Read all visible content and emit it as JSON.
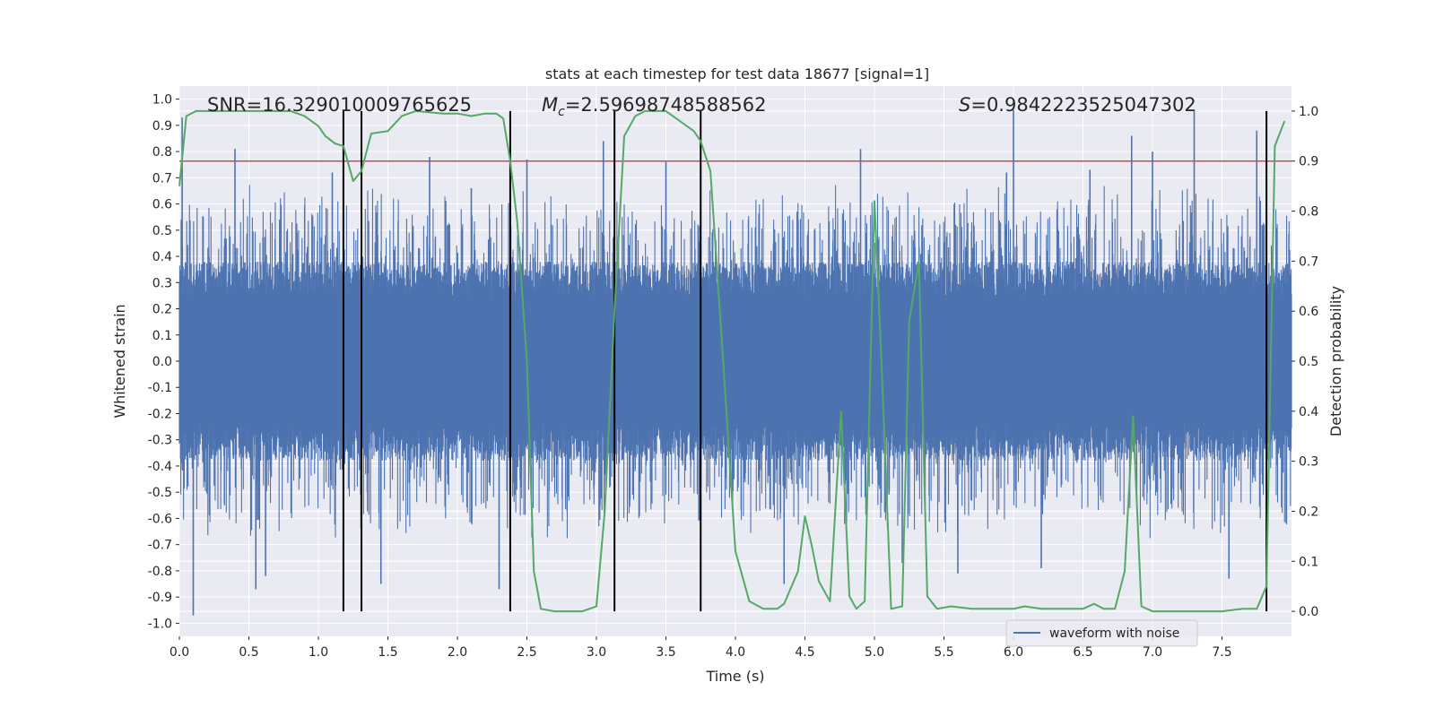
{
  "chart_data": {
    "type": "line",
    "title": "stats at each timestep for test data 18677 [signal=1]",
    "xlabel": "Time (s)",
    "ylabel_left": "Whitened strain",
    "ylabel_right": "Detection probability",
    "xlim": [
      0,
      8
    ],
    "ylim_left": [
      -1.05,
      1.05
    ],
    "ylim_right": [
      -0.05,
      1.05
    ],
    "x_ticks": [
      "0.0",
      "0.5",
      "1.0",
      "1.5",
      "2.0",
      "2.5",
      "3.0",
      "3.5",
      "4.0",
      "4.5",
      "5.0",
      "5.5",
      "6.0",
      "6.5",
      "7.0",
      "7.5"
    ],
    "y_left_ticks": [
      "1.0",
      "0.9",
      "0.8",
      "0.7",
      "0.6",
      "0.5",
      "0.4",
      "0.3",
      "0.2",
      "0.1",
      "0.0",
      "-0.1",
      "-0.2",
      "-0.3",
      "-0.4",
      "-0.5",
      "-0.6",
      "-0.7",
      "-0.8",
      "-0.9",
      "-1.0"
    ],
    "y_right_ticks": [
      "1.0",
      "0.9",
      "0.8",
      "0.7",
      "0.6",
      "0.5",
      "0.4",
      "0.3",
      "0.2",
      "0.1",
      "0.0"
    ],
    "grid": true,
    "legend": {
      "placement": "lower-right",
      "entries": [
        "waveform with noise"
      ]
    },
    "annotations": {
      "snr": "SNR=16.329010009765625",
      "mc_prefix": "M",
      "mc_sub": "c",
      "mc_value": "=2.59698748588562",
      "s_prefix": "S",
      "s_value": "=0.9842223525047302"
    },
    "threshold": 0.9,
    "vlines": [
      1.18,
      1.31,
      2.38,
      3.13,
      3.75,
      7.82
    ],
    "waveform": {
      "name": "waveform with noise",
      "color": "#4c72b0",
      "envelope_typical": 0.38,
      "peak_points": [
        [
          0.02,
          0.93
        ],
        [
          0.1,
          -0.97
        ],
        [
          0.4,
          0.81
        ],
        [
          0.55,
          -0.87
        ],
        [
          0.62,
          -0.82
        ],
        [
          1.1,
          0.72
        ],
        [
          1.45,
          -0.85
        ],
        [
          1.8,
          0.78
        ],
        [
          2.1,
          0.66
        ],
        [
          2.3,
          -0.87
        ],
        [
          2.5,
          0.77
        ],
        [
          3.05,
          0.84
        ],
        [
          3.5,
          0.76
        ],
        [
          4.35,
          -0.85
        ],
        [
          4.9,
          0.81
        ],
        [
          5.2,
          -0.77
        ],
        [
          5.6,
          -0.81
        ],
        [
          5.95,
          0.72
        ],
        [
          6.0,
          0.96
        ],
        [
          6.2,
          -0.79
        ],
        [
          6.55,
          0.73
        ],
        [
          6.85,
          0.86
        ],
        [
          7.0,
          0.8
        ],
        [
          7.3,
          0.96
        ],
        [
          7.55,
          -0.83
        ],
        [
          7.75,
          0.88
        ]
      ]
    },
    "probability": {
      "color": "#55a868",
      "points": [
        [
          0.0,
          0.85
        ],
        [
          0.05,
          0.99
        ],
        [
          0.12,
          1.0
        ],
        [
          0.3,
          1.0
        ],
        [
          0.6,
          1.0
        ],
        [
          0.8,
          1.0
        ],
        [
          0.9,
          0.99
        ],
        [
          1.0,
          0.97
        ],
        [
          1.05,
          0.95
        ],
        [
          1.12,
          0.935
        ],
        [
          1.18,
          0.93
        ],
        [
          1.25,
          0.86
        ],
        [
          1.31,
          0.88
        ],
        [
          1.38,
          0.955
        ],
        [
          1.5,
          0.96
        ],
        [
          1.6,
          0.99
        ],
        [
          1.7,
          1.0
        ],
        [
          1.9,
          0.995
        ],
        [
          2.0,
          0.995
        ],
        [
          2.1,
          0.99
        ],
        [
          2.2,
          0.995
        ],
        [
          2.28,
          0.995
        ],
        [
          2.33,
          0.985
        ],
        [
          2.38,
          0.9
        ],
        [
          2.43,
          0.78
        ],
        [
          2.5,
          0.5
        ],
        [
          2.55,
          0.08
        ],
        [
          2.6,
          0.005
        ],
        [
          2.7,
          0.0
        ],
        [
          2.9,
          0.0
        ],
        [
          3.0,
          0.01
        ],
        [
          3.06,
          0.2
        ],
        [
          3.13,
          0.6
        ],
        [
          3.2,
          0.95
        ],
        [
          3.28,
          0.99
        ],
        [
          3.35,
          1.0
        ],
        [
          3.5,
          1.0
        ],
        [
          3.6,
          0.98
        ],
        [
          3.7,
          0.96
        ],
        [
          3.75,
          0.94
        ],
        [
          3.82,
          0.88
        ],
        [
          3.9,
          0.55
        ],
        [
          4.0,
          0.12
        ],
        [
          4.1,
          0.02
        ],
        [
          4.2,
          0.005
        ],
        [
          4.3,
          0.005
        ],
        [
          4.35,
          0.015
        ],
        [
          4.45,
          0.08
        ],
        [
          4.5,
          0.19
        ],
        [
          4.55,
          0.13
        ],
        [
          4.6,
          0.06
        ],
        [
          4.68,
          0.02
        ],
        [
          4.76,
          0.4
        ],
        [
          4.82,
          0.03
        ],
        [
          4.87,
          0.005
        ],
        [
          4.93,
          0.02
        ],
        [
          5.0,
          0.82
        ],
        [
          5.05,
          0.5
        ],
        [
          5.12,
          0.005
        ],
        [
          5.2,
          0.01
        ],
        [
          5.25,
          0.58
        ],
        [
          5.32,
          0.7
        ],
        [
          5.38,
          0.03
        ],
        [
          5.45,
          0.005
        ],
        [
          5.55,
          0.01
        ],
        [
          5.7,
          0.005
        ],
        [
          6.0,
          0.005
        ],
        [
          6.08,
          0.01
        ],
        [
          6.2,
          0.005
        ],
        [
          6.5,
          0.005
        ],
        [
          6.58,
          0.015
        ],
        [
          6.65,
          0.005
        ],
        [
          6.73,
          0.005
        ],
        [
          6.8,
          0.08
        ],
        [
          6.86,
          0.39
        ],
        [
          6.92,
          0.01
        ],
        [
          7.0,
          0.0
        ],
        [
          7.5,
          0.0
        ],
        [
          7.65,
          0.005
        ],
        [
          7.75,
          0.005
        ],
        [
          7.82,
          0.05
        ],
        [
          7.88,
          0.93
        ],
        [
          7.95,
          0.98
        ]
      ]
    },
    "colors": {
      "background": "#eaeaf2",
      "grid": "#ffffff",
      "threshold": "#c44e52",
      "vline": "#000000"
    }
  }
}
